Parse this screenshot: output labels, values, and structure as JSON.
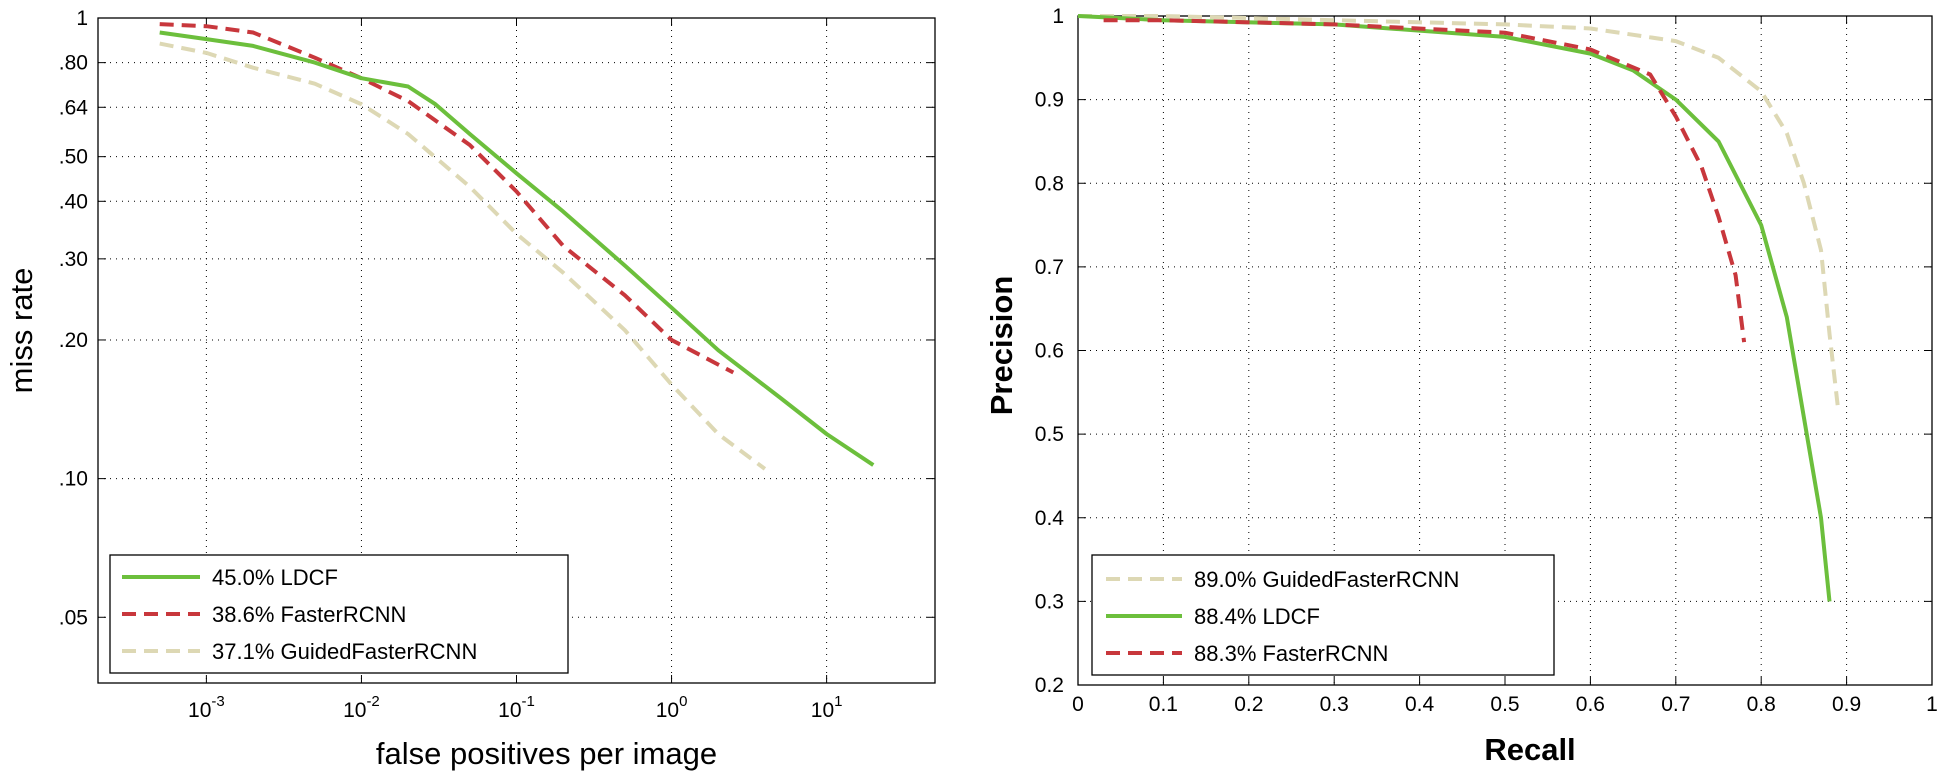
{
  "chart_data": [
    {
      "type": "line",
      "xlabel": "false positives per image",
      "ylabel": "miss rate",
      "xscale": "log",
      "yscale": "log",
      "xlim": [
        0.0002,
        50
      ],
      "ylim": [
        0.036,
        1
      ],
      "x_ticks": [
        {
          "value": 0.001,
          "base": "10",
          "exp": "-3"
        },
        {
          "value": 0.01,
          "base": "10",
          "exp": "-2"
        },
        {
          "value": 0.1,
          "base": "10",
          "exp": "-1"
        },
        {
          "value": 1,
          "base": "10",
          "exp": "0"
        },
        {
          "value": 10,
          "base": "10",
          "exp": "1"
        }
      ],
      "y_ticks": [
        {
          "value": 1,
          "label": "1"
        },
        {
          "value": 0.8,
          "label": ".80"
        },
        {
          "value": 0.64,
          "label": ".64"
        },
        {
          "value": 0.5,
          "label": ".50"
        },
        {
          "value": 0.4,
          "label": ".40"
        },
        {
          "value": 0.3,
          "label": ".30"
        },
        {
          "value": 0.2,
          "label": ".20"
        },
        {
          "value": 0.1,
          "label": ".10"
        },
        {
          "value": 0.05,
          "label": ".05"
        }
      ],
      "grid": true,
      "legend_position": "bottom-left",
      "series": [
        {
          "name": "45.0% LDCF",
          "color": "#6cbf3c",
          "style": "solid",
          "x": [
            0.0005,
            0.001,
            0.002,
            0.005,
            0.01,
            0.02,
            0.03,
            0.05,
            0.1,
            0.2,
            0.5,
            1,
            2,
            5,
            10,
            20
          ],
          "y": [
            0.93,
            0.9,
            0.87,
            0.8,
            0.74,
            0.71,
            0.65,
            0.56,
            0.46,
            0.38,
            0.29,
            0.235,
            0.19,
            0.15,
            0.125,
            0.107
          ]
        },
        {
          "name": "38.6% FasterRCNN",
          "color": "#c8373c",
          "style": "dashed",
          "x": [
            0.0005,
            0.001,
            0.002,
            0.003,
            0.005,
            0.01,
            0.02,
            0.05,
            0.1,
            0.2,
            0.5,
            1,
            2.5
          ],
          "y": [
            0.97,
            0.96,
            0.93,
            0.88,
            0.82,
            0.74,
            0.66,
            0.53,
            0.42,
            0.32,
            0.25,
            0.2,
            0.17
          ]
        },
        {
          "name": "37.1% GuidedFasterRCNN",
          "color": "#ddd8b4",
          "style": "dashed",
          "x": [
            0.0005,
            0.001,
            0.002,
            0.005,
            0.01,
            0.02,
            0.05,
            0.1,
            0.2,
            0.5,
            1,
            2,
            4
          ],
          "y": [
            0.88,
            0.84,
            0.78,
            0.72,
            0.65,
            0.56,
            0.43,
            0.34,
            0.28,
            0.21,
            0.16,
            0.125,
            0.105
          ]
        }
      ]
    },
    {
      "type": "line",
      "xlabel": "Recall",
      "ylabel": "Precision",
      "xlim": [
        0,
        1
      ],
      "ylim": [
        0.2,
        1
      ],
      "x_ticks": [
        0,
        0.1,
        0.2,
        0.3,
        0.4,
        0.5,
        0.6,
        0.7,
        0.8,
        0.9,
        1
      ],
      "x_tick_labels": [
        "0",
        "0.1",
        "0.2",
        "0.3",
        "0.4",
        "0.5",
        "0.6",
        "0.7",
        "0.8",
        "0.9",
        "1"
      ],
      "y_ticks": [
        0.2,
        0.3,
        0.4,
        0.5,
        0.6,
        0.7,
        0.8,
        0.9,
        1
      ],
      "y_tick_labels": [
        "0.2",
        "0.3",
        "0.4",
        "0.5",
        "0.6",
        "0.7",
        "0.8",
        "0.9",
        "1"
      ],
      "grid": true,
      "legend_position": "bottom-left",
      "series": [
        {
          "name": "89.0% GuidedFasterRCNN",
          "color": "#ddd8b4",
          "style": "dashed",
          "x": [
            0,
            0.1,
            0.3,
            0.5,
            0.6,
            0.7,
            0.75,
            0.8,
            0.83,
            0.85,
            0.87,
            0.88,
            0.89
          ],
          "y": [
            1,
            1,
            0.995,
            0.99,
            0.985,
            0.97,
            0.95,
            0.91,
            0.86,
            0.8,
            0.72,
            0.62,
            0.53
          ]
        },
        {
          "name": "88.4% LDCF",
          "color": "#6cbf3c",
          "style": "solid",
          "x": [
            0,
            0.1,
            0.3,
            0.5,
            0.6,
            0.65,
            0.7,
            0.75,
            0.8,
            0.83,
            0.85,
            0.87,
            0.88
          ],
          "y": [
            1,
            0.995,
            0.99,
            0.975,
            0.955,
            0.935,
            0.9,
            0.85,
            0.75,
            0.64,
            0.52,
            0.4,
            0.3
          ]
        },
        {
          "name": "88.3% FasterRCNN",
          "color": "#c8373c",
          "style": "dashed",
          "x": [
            0.03,
            0.1,
            0.3,
            0.5,
            0.6,
            0.67,
            0.7,
            0.73,
            0.75,
            0.77,
            0.78
          ],
          "y": [
            0.995,
            0.995,
            0.99,
            0.98,
            0.96,
            0.93,
            0.88,
            0.82,
            0.76,
            0.69,
            0.61
          ]
        }
      ]
    }
  ]
}
